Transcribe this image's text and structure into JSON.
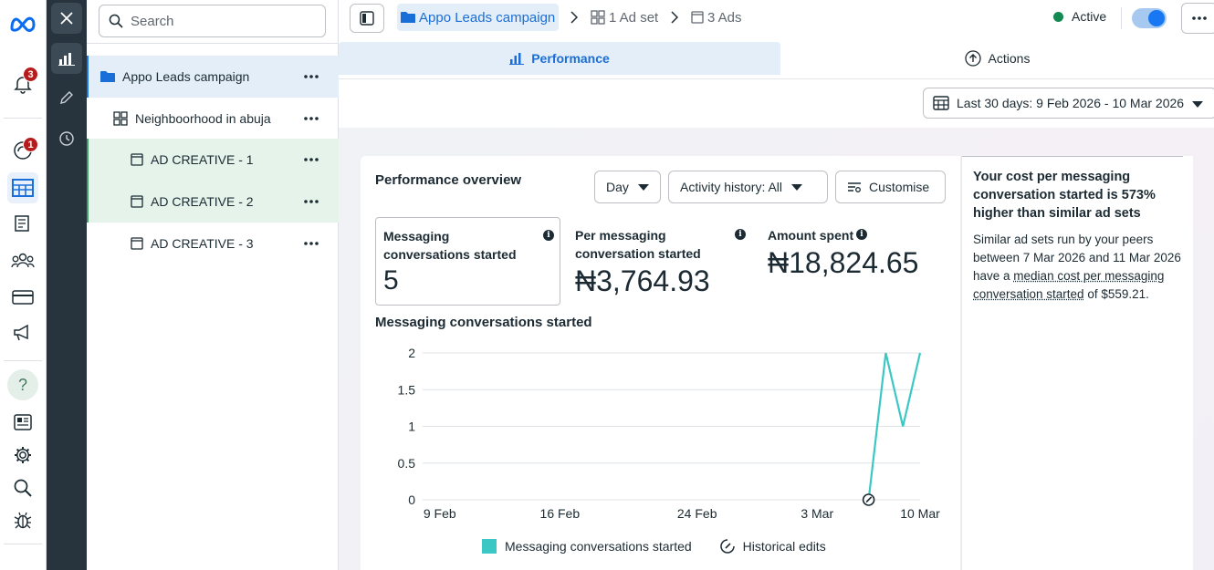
{
  "rail": {
    "notifications_badge": "3",
    "activity_badge": "1",
    "help_label": "?"
  },
  "tree": {
    "search_placeholder": "Search",
    "campaign": "Appo Leads campaign",
    "adset": "Neighboorhood in abuja",
    "ads": [
      "AD CREATIVE - 1",
      "AD CREATIVE - 2",
      "AD CREATIVE - 3"
    ]
  },
  "header": {
    "breadcrumb_campaign": "Appo Leads campaign",
    "breadcrumb_adset": "1 Ad set",
    "breadcrumb_ads": "3 Ads",
    "status": "Active",
    "status_color": "#138a52",
    "toggle_on": true
  },
  "tabs": {
    "performance": "Performance",
    "actions": "Actions"
  },
  "date_range": "Last 30 days: 9 Feb 2026 - 10 Mar 2026",
  "overview": {
    "title": "Performance overview",
    "granularity": "Day",
    "activity_filter": "Activity history: All",
    "customise": "Customise",
    "metrics": [
      {
        "label": "Messaging conversations started",
        "value": "5"
      },
      {
        "label": "Per messaging conversation started",
        "value": "₦3,764.93"
      },
      {
        "label": "Amount spent",
        "value": "₦18,824.65"
      }
    ]
  },
  "chart_data": {
    "type": "line",
    "title": "Messaging conversations started",
    "x_ticks": [
      "9 Feb",
      "16 Feb",
      "24 Feb",
      "3 Mar",
      "10 Mar"
    ],
    "y_ticks": [
      "0",
      "0.5",
      "1",
      "1.5",
      "2"
    ],
    "ylim": [
      0,
      2
    ],
    "xlim": [
      "2026-02-09",
      "2026-03-10"
    ],
    "series": [
      {
        "name": "Messaging conversations started",
        "color": "#3bc8c4",
        "points": [
          {
            "x": "2026-03-07",
            "y": 0
          },
          {
            "x": "2026-03-08",
            "y": 2
          },
          {
            "x": "2026-03-09",
            "y": 1
          },
          {
            "x": "2026-03-10",
            "y": 2
          }
        ]
      }
    ],
    "historical_edits": [
      "2026-03-07"
    ],
    "legend": [
      "Messaging conversations started",
      "Historical edits"
    ],
    "grid": true
  },
  "insight": {
    "headline": "Your cost per messaging conversation started is 573% higher than similar ad sets",
    "body_prefix": "Similar ad sets run by your peers between 7 Mar 2026 and 11 Mar 2026 have a ",
    "body_link": "median cost per messaging conversation started",
    "body_suffix": " of $559.21."
  }
}
